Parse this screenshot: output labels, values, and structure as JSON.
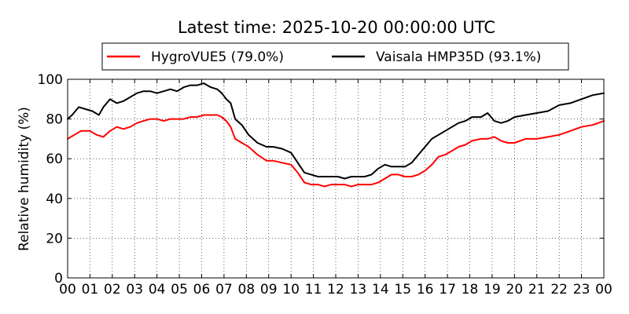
{
  "chart_data": {
    "type": "line",
    "title": "Latest time: 2025-10-20 00:00:00 UTC",
    "xlabel": "",
    "ylabel": "Relative humidity (%)",
    "xlim": [
      0,
      24
    ],
    "ylim": [
      0,
      100
    ],
    "x_ticks": [
      "00",
      "01",
      "02",
      "03",
      "04",
      "05",
      "06",
      "07",
      "08",
      "09",
      "10",
      "11",
      "12",
      "13",
      "14",
      "15",
      "16",
      "17",
      "18",
      "19",
      "20",
      "21",
      "22",
      "23",
      "00"
    ],
    "y_ticks": [
      "0",
      "20",
      "40",
      "60",
      "80",
      "100"
    ],
    "grid": true,
    "legend_position": "top-center",
    "series": [
      {
        "name": "HygroVUE5 (79.0%)",
        "color": "#ff0000",
        "x": [
          0,
          0.3,
          0.6,
          1.0,
          1.3,
          1.6,
          1.9,
          2.2,
          2.5,
          2.8,
          3.1,
          3.4,
          3.7,
          4.0,
          4.3,
          4.6,
          4.9,
          5.2,
          5.5,
          5.8,
          6.1,
          6.4,
          6.7,
          6.9,
          7.1,
          7.3,
          7.5,
          7.8,
          8.1,
          8.5,
          8.9,
          9.2,
          9.6,
          10.0,
          10.3,
          10.6,
          10.9,
          11.2,
          11.5,
          11.8,
          12.1,
          12.4,
          12.7,
          13.0,
          13.3,
          13.6,
          13.9,
          14.2,
          14.5,
          14.8,
          15.1,
          15.4,
          15.7,
          16.0,
          16.3,
          16.6,
          16.9,
          17.2,
          17.5,
          17.8,
          18.1,
          18.5,
          18.8,
          19.1,
          19.4,
          19.7,
          20.0,
          20.5,
          21.0,
          21.5,
          22.0,
          22.5,
          23.0,
          23.5,
          24.0
        ],
        "y": [
          70,
          72,
          74,
          74,
          72,
          71,
          74,
          76,
          75,
          76,
          78,
          79,
          80,
          80,
          79,
          80,
          80,
          80,
          81,
          81,
          82,
          82,
          82,
          81,
          79,
          76,
          70,
          68,
          66,
          62,
          59,
          59,
          58,
          57,
          53,
          48,
          47,
          47,
          46,
          47,
          47,
          47,
          46,
          47,
          47,
          47,
          48,
          50,
          52,
          52,
          51,
          51,
          52,
          54,
          57,
          61,
          62,
          64,
          66,
          67,
          69,
          70,
          70,
          71,
          69,
          68,
          68,
          70,
          70,
          71,
          72,
          74,
          76,
          77,
          79
        ]
      },
      {
        "name": "Vaisala HMP35D (93.1%)",
        "color": "#000000",
        "x": [
          0,
          0.2,
          0.5,
          0.8,
          1.1,
          1.4,
          1.6,
          1.9,
          2.2,
          2.5,
          2.8,
          3.1,
          3.4,
          3.7,
          4.0,
          4.3,
          4.6,
          4.9,
          5.2,
          5.5,
          5.8,
          6.1,
          6.4,
          6.7,
          6.9,
          7.1,
          7.3,
          7.5,
          7.8,
          8.1,
          8.5,
          8.9,
          9.2,
          9.6,
          10.0,
          10.3,
          10.6,
          10.9,
          11.2,
          11.5,
          11.8,
          12.1,
          12.4,
          12.7,
          13.0,
          13.3,
          13.6,
          13.9,
          14.2,
          14.5,
          14.8,
          15.1,
          15.4,
          15.7,
          16.0,
          16.3,
          16.6,
          16.9,
          17.2,
          17.5,
          17.8,
          18.1,
          18.5,
          18.8,
          19.1,
          19.4,
          19.7,
          20.0,
          20.5,
          21.0,
          21.5,
          22.0,
          22.5,
          23.0,
          23.5,
          24.0
        ],
        "y": [
          80,
          82,
          86,
          85,
          84,
          82,
          86,
          90,
          88,
          89,
          91,
          93,
          94,
          94,
          93,
          94,
          95,
          94,
          96,
          97,
          97,
          98,
          96,
          95,
          93,
          90,
          88,
          80,
          77,
          72,
          68,
          66,
          66,
          65,
          63,
          58,
          53,
          52,
          51,
          51,
          51,
          51,
          50,
          51,
          51,
          51,
          52,
          55,
          57,
          56,
          56,
          56,
          58,
          62,
          66,
          70,
          72,
          74,
          76,
          78,
          79,
          81,
          81,
          83,
          79,
          78,
          79,
          81,
          82,
          83,
          84,
          87,
          88,
          90,
          92,
          93
        ]
      }
    ]
  }
}
